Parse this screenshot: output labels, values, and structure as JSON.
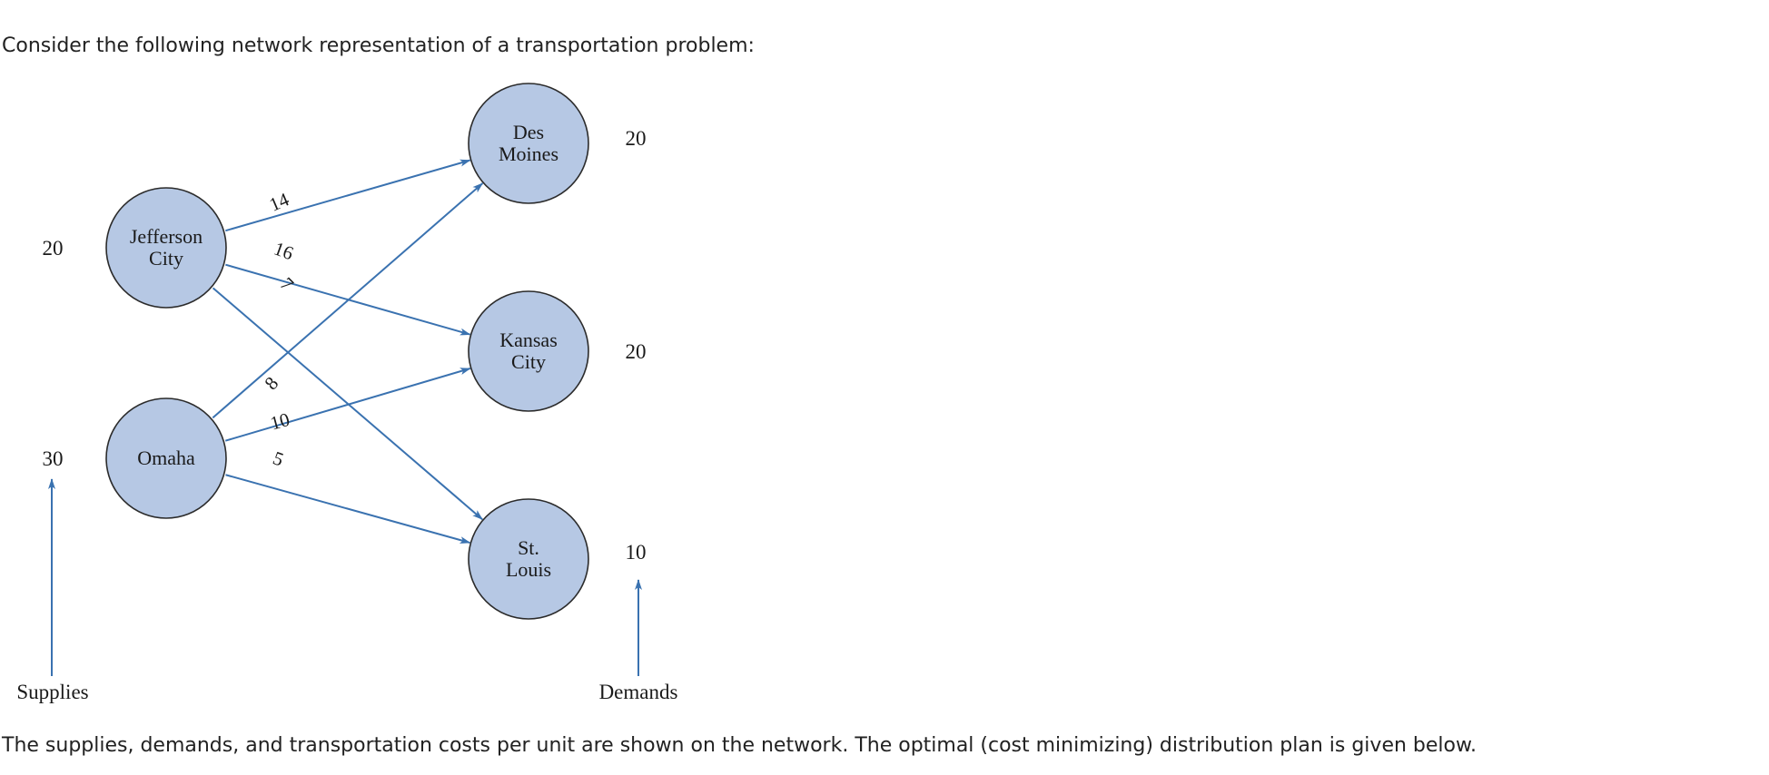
{
  "intro_text": "Consider the following network representation of a transportation problem:",
  "outro_text": "The supplies, demands, and transportation costs per unit are shown on the network. The optimal (cost minimizing) distribution plan is given below.",
  "diagram": {
    "colors": {
      "node_fill": "#b6c8e4",
      "arrow": "#3a72b0",
      "node_stroke": "#2b2b2b"
    },
    "origins": [
      {
        "id": "jefferson",
        "lines": [
          "Jefferson",
          "City"
        ],
        "supply": "20"
      },
      {
        "id": "omaha",
        "lines": [
          "Omaha"
        ],
        "supply": "30"
      }
    ],
    "destinations": [
      {
        "id": "desmoines",
        "lines": [
          "Des",
          "Moines"
        ],
        "demand": "20"
      },
      {
        "id": "kansas",
        "lines": [
          "Kansas",
          "City"
        ],
        "demand": "20"
      },
      {
        "id": "stlouis",
        "lines": [
          "St.",
          "Louis"
        ],
        "demand": "10"
      }
    ],
    "arcs": [
      {
        "from": "jefferson",
        "to": "desmoines",
        "cost": "14"
      },
      {
        "from": "jefferson",
        "to": "kansas",
        "cost": "16"
      },
      {
        "from": "jefferson",
        "to": "stlouis",
        "cost": "7"
      },
      {
        "from": "omaha",
        "to": "desmoines",
        "cost": "8"
      },
      {
        "from": "omaha",
        "to": "kansas",
        "cost": "10"
      },
      {
        "from": "omaha",
        "to": "stlouis",
        "cost": "5"
      }
    ],
    "supplies_label": "Supplies",
    "demands_label": "Demands"
  }
}
